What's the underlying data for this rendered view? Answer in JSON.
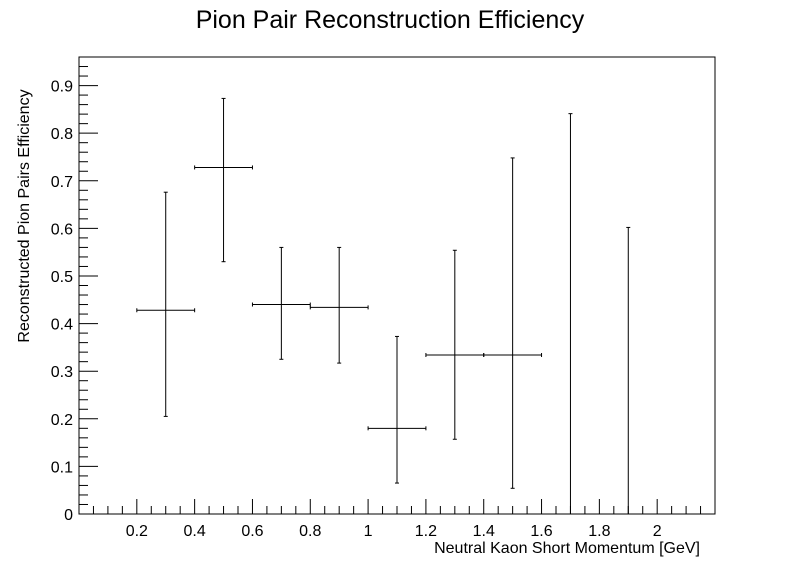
{
  "chart_data": {
    "type": "scatter",
    "title": "Pion Pair Reconstruction Efficiency",
    "xlabel": "Neutral Kaon Short Momentum [GeV]",
    "ylabel": "Reconstructed Pion Pairs Efficiency",
    "xlim": [
      0,
      2.2
    ],
    "ylim": [
      0,
      0.96
    ],
    "x_ticks": [
      0.2,
      0.4,
      0.6,
      0.8,
      1,
      1.2,
      1.4,
      1.6,
      1.8,
      2
    ],
    "x_tick_labels": [
      "0.2",
      "0.4",
      "0.6",
      "0.8",
      "1",
      "1.2",
      "1.4",
      "1.6",
      "1.8",
      "2"
    ],
    "y_ticks": [
      0,
      0.1,
      0.2,
      0.3,
      0.4,
      0.5,
      0.6,
      0.7,
      0.8,
      0.9
    ],
    "y_tick_labels": [
      "0",
      "0.1",
      "0.2",
      "0.3",
      "0.4",
      "0.5",
      "0.6",
      "0.7",
      "0.8",
      "0.9"
    ],
    "grid": false,
    "color": "#000000",
    "points": [
      {
        "x": 0.3,
        "xerr": 0.1,
        "y": 0.428,
        "ylow": 0.205,
        "yhigh": 0.676
      },
      {
        "x": 0.5,
        "xerr": 0.1,
        "y": 0.728,
        "ylow": 0.53,
        "yhigh": 0.873
      },
      {
        "x": 0.7,
        "xerr": 0.1,
        "y": 0.44,
        "ylow": 0.325,
        "yhigh": 0.56
      },
      {
        "x": 0.9,
        "xerr": 0.1,
        "y": 0.434,
        "ylow": 0.317,
        "yhigh": 0.56
      },
      {
        "x": 1.1,
        "xerr": 0.1,
        "y": 0.18,
        "ylow": 0.065,
        "yhigh": 0.373
      },
      {
        "x": 1.3,
        "xerr": 0.1,
        "y": 0.334,
        "ylow": 0.157,
        "yhigh": 0.554
      },
      {
        "x": 1.5,
        "xerr": 0.1,
        "y": 0.334,
        "ylow": 0.054,
        "yhigh": 0.748
      },
      {
        "x": 1.7,
        "xerr": 0,
        "y": 0,
        "ylow": 0,
        "yhigh": 0.841
      },
      {
        "x": 1.9,
        "xerr": 0,
        "y": 0,
        "ylow": 0,
        "yhigh": 0.602
      }
    ]
  }
}
